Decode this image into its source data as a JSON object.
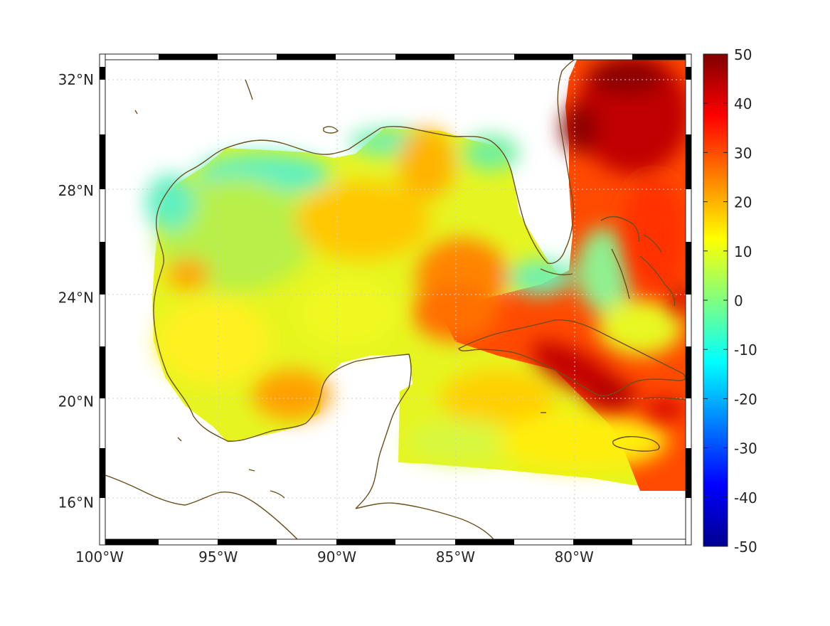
{
  "map": {
    "type": "heatmap",
    "region": "Gulf of Mexico",
    "projection": "mercator",
    "lon_range": [
      -100,
      -75
    ],
    "lat_range": [
      14.3,
      32.9
    ],
    "grid": true,
    "coastline_color": "#6b4f1d",
    "longitude_ticks": [
      {
        "value": -100,
        "label": "100°W"
      },
      {
        "value": -95,
        "label": "95°W"
      },
      {
        "value": -90,
        "label": "90°W"
      },
      {
        "value": -85,
        "label": "85°W"
      },
      {
        "value": -80,
        "label": "80°W"
      }
    ],
    "latitude_ticks": [
      {
        "value": 32,
        "label": "32°N"
      },
      {
        "value": 28,
        "label": "28°N"
      },
      {
        "value": 24,
        "label": "24°N"
      },
      {
        "value": 20,
        "label": "20°N"
      },
      {
        "value": 16,
        "label": "16°N"
      }
    ]
  },
  "colorbar": {
    "colormap": "jet",
    "range": [
      -50,
      50
    ],
    "ticks": [
      {
        "value": 50,
        "label": "50"
      },
      {
        "value": 40,
        "label": "40"
      },
      {
        "value": 30,
        "label": "30"
      },
      {
        "value": 20,
        "label": "20"
      },
      {
        "value": 10,
        "label": "10"
      },
      {
        "value": 0,
        "label": "0"
      },
      {
        "value": -10,
        "label": "-10"
      },
      {
        "value": -20,
        "label": "-20"
      },
      {
        "value": -30,
        "label": "-30"
      },
      {
        "value": -40,
        "label": "-40"
      },
      {
        "value": -50,
        "label": "-50"
      }
    ]
  }
}
